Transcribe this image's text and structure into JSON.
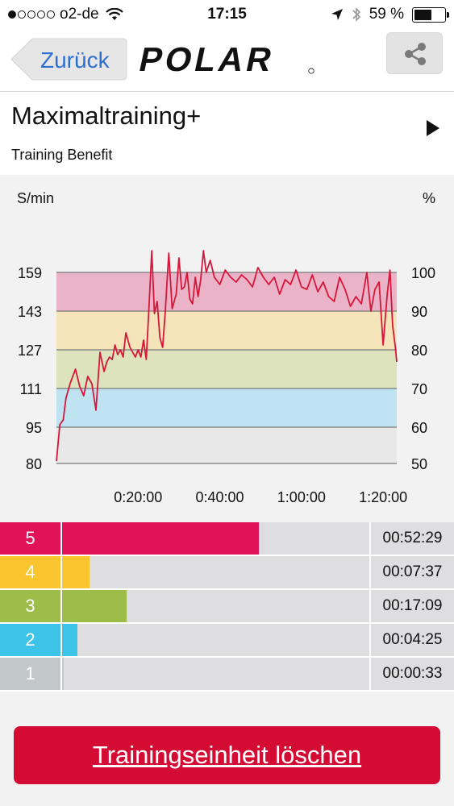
{
  "status_bar": {
    "carrier": "o2-de",
    "time": "17:15",
    "battery": "59 %",
    "signal_bars_filled": 1,
    "signal_bars_total": 5,
    "battery_level": 0.59,
    "icons": [
      "wifi-icon",
      "location-arrow-icon",
      "bluetooth-icon",
      "battery-icon"
    ]
  },
  "nav": {
    "back_label": "Zurück",
    "logo_text": "POLAR",
    "share_icon": "share-icon"
  },
  "header": {
    "title": "Maximaltraining+",
    "subtitle": "Training Benefit",
    "play_icon": "play-triangle-icon"
  },
  "chart_data": {
    "type": "line",
    "left_unit": "S/min",
    "right_unit": "%",
    "left_ticks": [
      "80",
      "95",
      "111",
      "127",
      "143",
      "159"
    ],
    "right_ticks": [
      "50",
      "60",
      "70",
      "80",
      "90",
      "100"
    ],
    "x_ticks": [
      "0:20:00",
      "0:40:00",
      "1:00:00",
      "1:20:00"
    ],
    "x_tick_seconds": [
      1200,
      2400,
      3600,
      4800
    ],
    "x_range": [
      0,
      5000
    ],
    "y_range": [
      80,
      159
    ],
    "zone_colors": [
      "#e8e8e8",
      "#bfe3f1",
      "#dde4bd",
      "#f5e4ba",
      "#ebb3c8"
    ],
    "line_color": "#d6173a",
    "zone_bounds": [
      80,
      95,
      111,
      127,
      143,
      159
    ],
    "series": [
      {
        "x": [
          0,
          50,
          100,
          140,
          200,
          280,
          340,
          400,
          460,
          520,
          580,
          640,
          700,
          740,
          780,
          820,
          860,
          900,
          940,
          980,
          1020,
          1080,
          1120,
          1160,
          1200,
          1240,
          1280,
          1320,
          1360,
          1400,
          1440,
          1480,
          1520,
          1560,
          1600,
          1650,
          1700,
          1760,
          1800,
          1840,
          1880,
          1920,
          1960,
          2000,
          2040,
          2080,
          2120,
          2160,
          2200,
          2260,
          2320,
          2400,
          2480,
          2560,
          2640,
          2720,
          2800,
          2880,
          2960,
          3040,
          3120,
          3200,
          3280,
          3360,
          3440,
          3520,
          3600,
          3680,
          3760,
          3840,
          3920,
          4000,
          4080,
          4160,
          4240,
          4320,
          4400,
          4480,
          4560,
          4620,
          4680,
          4740,
          4800,
          4860,
          4900,
          4940,
          4980,
          5000
        ],
        "y": [
          81,
          96,
          98,
          107,
          113,
          119,
          112,
          108,
          116,
          113,
          102,
          126,
          118,
          122,
          124,
          123,
          129,
          125,
          127,
          124,
          134,
          128,
          126,
          124,
          127,
          124,
          131,
          123,
          145,
          168,
          142,
          147,
          132,
          128,
          143,
          167,
          144,
          150,
          165,
          152,
          153,
          159,
          148,
          146,
          157,
          149,
          156,
          168,
          159,
          164,
          157,
          154,
          160,
          157,
          155,
          158,
          156,
          153,
          161,
          157,
          154,
          157,
          150,
          156,
          154,
          160,
          153,
          152,
          158,
          151,
          155,
          149,
          147,
          157,
          152,
          145,
          149,
          146,
          159,
          143,
          152,
          155,
          129,
          150,
          160,
          137,
          128,
          122
        ]
      }
    ]
  },
  "zones": [
    {
      "num": "5",
      "time": "00:52:29",
      "color": "#e11257",
      "fraction": 0.64
    },
    {
      "num": "4",
      "time": "00:07:37",
      "color": "#fbc530",
      "fraction": 0.09
    },
    {
      "num": "3",
      "time": "00:17:09",
      "color": "#9dbd4a",
      "fraction": 0.21
    },
    {
      "num": "2",
      "time": "00:04:25",
      "color": "#3ec3e8",
      "fraction": 0.05
    },
    {
      "num": "1",
      "time": "00:00:33",
      "color": "#c2c7c9",
      "fraction": 0.005
    }
  ],
  "delete_button": {
    "label": "Trainingseinheit löschen",
    "color": "#d40c34"
  }
}
